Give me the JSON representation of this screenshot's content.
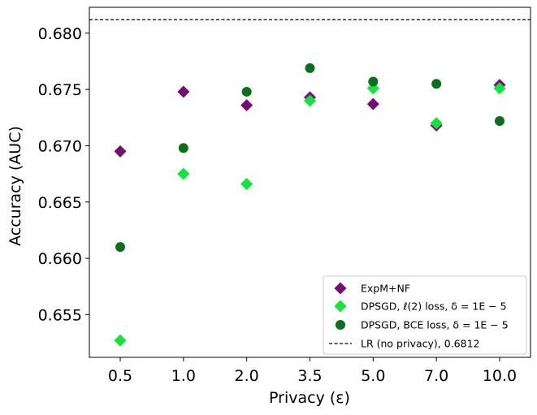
{
  "chart_data": {
    "type": "scatter",
    "xlabel": "Privacy (ε)",
    "ylabel": "Accuracy (AUC)",
    "categories": [
      "0.5",
      "1.0",
      "2.0",
      "3.5",
      "5.0",
      "7.0",
      "10.0"
    ],
    "ylim": [
      0.6512,
      0.6823
    ],
    "yticks": [
      "0.655",
      "0.660",
      "0.665",
      "0.670",
      "0.675",
      "0.680"
    ],
    "series": [
      {
        "name": "ExpM+NF",
        "marker": "diamond",
        "color": "#750d75",
        "values": [
          0.6695,
          0.6748,
          0.6736,
          0.6743,
          0.6737,
          0.6718,
          0.6754
        ]
      },
      {
        "name": "DPSGD, ℓ(2) loss, δ = 1E − 5",
        "marker": "diamond",
        "color": "#11e43c",
        "values": [
          0.6527,
          0.6675,
          0.6666,
          0.674,
          0.6751,
          0.672,
          0.6751
        ]
      },
      {
        "name": "DPSGD, BCE loss, δ = 1E − 5",
        "marker": "circle",
        "color": "#0b6f1b",
        "values": [
          0.661,
          0.6698,
          0.6748,
          0.6769,
          0.6757,
          0.6755,
          0.6722
        ]
      }
    ],
    "reference_line": {
      "name": "LR (no privacy), 0.6812",
      "value": 0.6812,
      "style": "dashed",
      "color": "#000000"
    },
    "legend": "bottom-right",
    "grid": false
  }
}
